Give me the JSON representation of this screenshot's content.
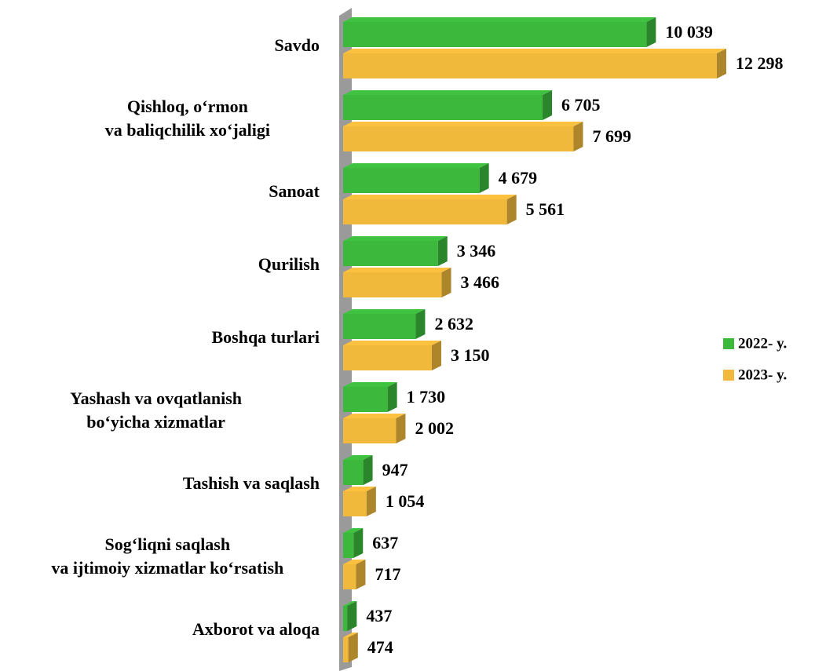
{
  "chart_data": {
    "type": "bar",
    "orientation": "horizontal",
    "categories": [
      "Savdo",
      "Qishloq, o‘rmon\nva baliqchilik xo‘jaligi",
      "Sanoat",
      "Qurilish",
      "Boshqa turlari",
      "Yashash va ovqatlanish\nbo‘yicha xizmatlar",
      "Tashish va saqlash",
      "Sog‘liqni saqlash\nva ijtimoiy xizmatlar ko‘rsatish",
      "Axborot va aloqa"
    ],
    "series": [
      {
        "name": "2022- y.",
        "color": "#3cb93c",
        "values": [
          10039,
          6705,
          4679,
          3346,
          2632,
          1730,
          947,
          637,
          437
        ],
        "value_labels": [
          "10 039",
          "6 705",
          "4 679",
          "3 346",
          "2 632",
          "1 730",
          "947",
          "637",
          "437"
        ]
      },
      {
        "name": "2023- y.",
        "color": "#f0b93c",
        "values": [
          12298,
          7699,
          5561,
          3466,
          3150,
          2002,
          1054,
          717,
          474
        ],
        "value_labels": [
          "12 298",
          "7 699",
          "5 561",
          "3 466",
          "3 150",
          "2 002",
          "1 054",
          "717",
          "474"
        ]
      }
    ],
    "xlim": [
      0,
      12500
    ],
    "legend": "right"
  }
}
